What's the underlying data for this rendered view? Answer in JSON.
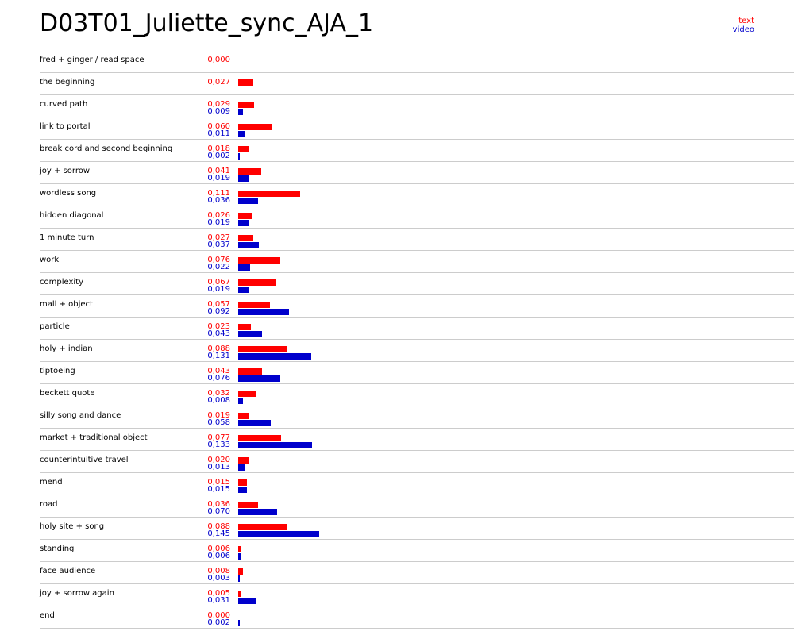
{
  "title": "D03T01_Juliette_sync_AJA_1",
  "legend": {
    "text_label": "text",
    "video_label": "video"
  },
  "colors": {
    "text": "#ff0000",
    "video": "#0000cc"
  },
  "chart_data": {
    "type": "bar",
    "title": "D03T01_Juliette_sync_AJA_1",
    "series": [
      {
        "name": "text"
      },
      {
        "name": "video"
      }
    ],
    "rows": [
      {
        "label": "fred + ginger / read space",
        "text": "0,000",
        "video": null
      },
      {
        "label": "the beginning",
        "text": "0,027",
        "video": null
      },
      {
        "label": "curved path",
        "text": "0,029",
        "video": "0,009"
      },
      {
        "label": "link to portal",
        "text": "0,060",
        "video": "0,011"
      },
      {
        "label": "break cord and second beginning",
        "text": "0,018",
        "video": "0,002"
      },
      {
        "label": "joy + sorrow",
        "text": "0,041",
        "video": "0,019"
      },
      {
        "label": "wordless song",
        "text": "0,111",
        "video": "0,036"
      },
      {
        "label": "hidden diagonal",
        "text": "0,026",
        "video": "0,019"
      },
      {
        "label": "1 minute turn",
        "text": "0,027",
        "video": "0,037"
      },
      {
        "label": "work",
        "text": "0,076",
        "video": "0,022"
      },
      {
        "label": "complexity",
        "text": "0,067",
        "video": "0,019"
      },
      {
        "label": "mall + object",
        "text": "0,057",
        "video": "0,092"
      },
      {
        "label": "particle",
        "text": "0,023",
        "video": "0,043"
      },
      {
        "label": "holy + indian",
        "text": "0,088",
        "video": "0,131"
      },
      {
        "label": "tiptoeing",
        "text": "0,043",
        "video": "0,076"
      },
      {
        "label": "beckett quote",
        "text": "0,032",
        "video": "0,008"
      },
      {
        "label": "silly song and dance",
        "text": "0,019",
        "video": "0,058"
      },
      {
        "label": "market + traditional object",
        "text": "0,077",
        "video": "0,133"
      },
      {
        "label": "counterintuitive travel",
        "text": "0,020",
        "video": "0,013"
      },
      {
        "label": "mend",
        "text": "0,015",
        "video": "0,015"
      },
      {
        "label": "road",
        "text": "0,036",
        "video": "0,070"
      },
      {
        "label": "holy site + song",
        "text": "0,088",
        "video": "0,145"
      },
      {
        "label": "standing",
        "text": "0,006",
        "video": "0,006"
      },
      {
        "label": "face audience",
        "text": "0,008",
        "video": "0,003"
      },
      {
        "label": "joy + sorrow again",
        "text": "0,005",
        "video": "0,031"
      },
      {
        "label": "end",
        "text": "0,000",
        "video": "0,002"
      }
    ]
  }
}
